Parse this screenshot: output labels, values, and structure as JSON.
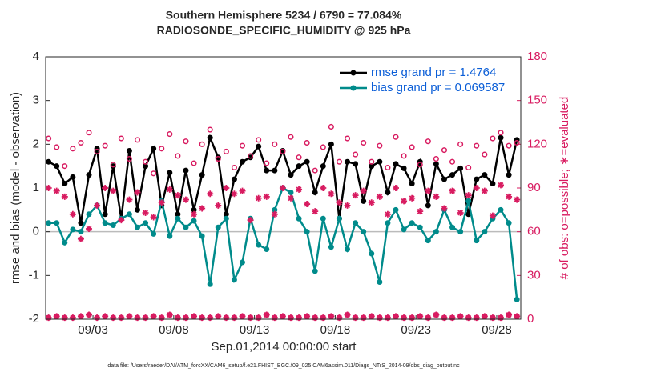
{
  "chart_data": {
    "type": "line",
    "title": "Southern Hemisphere 5234 / 6790 = 77.084%",
    "subtitle": "RADIOSONDE_SPECIFIC_HUMIDITY @ 925 hPa",
    "x_label": "Sep.01,2014 00:00:00 start",
    "y_label": "rmse and bias (model - observation)",
    "y2_label": "# of obs: o=possible; ∗=evaluated",
    "footnote": "data file: /Users/raeder/DAI/ATM_forcXX/CAM6_setup/f.e21.FHIST_BGC.f09_025.CAM6assim.011/Diags_NTrS_2014-09/obs_diag_output.nc",
    "xlim": [
      -0.93,
      28.49
    ],
    "xticks": [
      {
        "value": 2,
        "label": "09/03"
      },
      {
        "value": 7,
        "label": "09/08"
      },
      {
        "value": 12,
        "label": "09/13"
      },
      {
        "value": 17,
        "label": "09/18"
      },
      {
        "value": 22,
        "label": "09/23"
      },
      {
        "value": 27,
        "label": "09/28"
      }
    ],
    "ylim": [
      -2,
      4
    ],
    "yticks": [
      -2,
      -1,
      0,
      1,
      2,
      3,
      4
    ],
    "y2lim": [
      0,
      180
    ],
    "y2ticks": [
      0,
      30,
      60,
      90,
      120,
      150,
      180
    ],
    "legend": "upper right",
    "x": [
      -0.75,
      -0.25,
      0.25,
      0.75,
      1.25,
      1.75,
      2.25,
      2.75,
      3.25,
      3.75,
      4.25,
      4.75,
      5.25,
      5.75,
      6.25,
      6.75,
      7.25,
      7.75,
      8.25,
      8.75,
      9.25,
      9.75,
      10.25,
      10.75,
      11.25,
      11.75,
      12.25,
      12.75,
      13.25,
      13.75,
      14.25,
      14.75,
      15.25,
      15.75,
      16.25,
      16.75,
      17.25,
      17.75,
      18.25,
      18.75,
      19.25,
      19.75,
      20.25,
      20.75,
      21.25,
      21.75,
      22.25,
      22.75,
      23.25,
      23.75,
      24.25,
      24.75,
      25.25,
      25.75,
      26.25,
      26.75,
      27.25,
      27.75,
      28.25
    ],
    "series": [
      {
        "name": "rmse grand pr = 1.4764",
        "color": "#000000",
        "marker": "dot",
        "line": true,
        "values": [
          1.6,
          1.5,
          1.1,
          1.25,
          0.2,
          1.3,
          1.9,
          0.4,
          1.5,
          0.3,
          1.85,
          0.5,
          1.5,
          1.9,
          0.6,
          1.35,
          0.4,
          1.4,
          0.5,
          1.3,
          2.15,
          1.7,
          0.4,
          1.2,
          1.6,
          1.7,
          1.95,
          1.4,
          1.4,
          1.85,
          1.3,
          1.5,
          1.6,
          0.9,
          1.5,
          2.0,
          0.3,
          1.6,
          1.55,
          0.7,
          1.5,
          1.6,
          0.9,
          1.55,
          1.45,
          1.1,
          1.6,
          0.6,
          1.55,
          1.2,
          1.3,
          1.45,
          0.4,
          1.2,
          1.3,
          1.1,
          2.15,
          1.3,
          2.1
        ]
      },
      {
        "name": "bias grand pr = 0.069587",
        "color": "#008b8b",
        "marker": "dot",
        "line": true,
        "values": [
          0.2,
          0.2,
          -0.25,
          0.05,
          0.0,
          0.4,
          0.6,
          0.2,
          0.15,
          0.3,
          0.4,
          0.1,
          0.2,
          -0.05,
          0.7,
          -0.1,
          0.3,
          0.1,
          0.25,
          -0.1,
          -1.2,
          0.1,
          0.3,
          -1.1,
          -0.7,
          0.3,
          -0.3,
          -0.4,
          0.5,
          1.0,
          0.9,
          0.3,
          0.0,
          -0.9,
          0.3,
          -0.35,
          0.3,
          -0.4,
          0.2,
          0.0,
          -0.5,
          -1.15,
          0.2,
          0.5,
          0.05,
          0.2,
          0.1,
          -0.2,
          0.0,
          0.5,
          0.1,
          0.0,
          0.7,
          -0.2,
          0.0,
          0.3,
          0.5,
          0.2,
          -1.55
        ]
      },
      {
        "axis": "y2",
        "color": "#d81b60",
        "marker": "circle",
        "line": false,
        "values": [
          124,
          118,
          105,
          117,
          121,
          128,
          115,
          119,
          106,
          124,
          110,
          123,
          108,
          100,
          117,
          127,
          112,
          122,
          107,
          120,
          130,
          110,
          115,
          104,
          119,
          112,
          123,
          107,
          120,
          115,
          125,
          111,
          121,
          102,
          118,
          132,
          108,
          124,
          113,
          121,
          108,
          119,
          104,
          125,
          112,
          118,
          106,
          122,
          110,
          116,
          108,
          120,
          104,
          119,
          113,
          124,
          128,
          119,
          121
        ]
      },
      {
        "axis": "y2",
        "color": "#d81b60",
        "marker": "star",
        "line": false,
        "values": [
          90,
          88,
          84,
          72,
          55,
          62,
          78,
          90,
          88,
          68,
          82,
          87,
          73,
          70,
          80,
          89,
          85,
          82,
          72,
          76,
          86,
          78,
          90,
          86,
          88,
          68,
          83,
          84,
          72,
          90,
          83,
          89,
          79,
          74,
          90,
          86,
          80,
          78,
          85,
          88,
          80,
          84,
          72,
          90,
          81,
          83,
          74,
          88,
          84,
          76,
          88,
          73,
          85,
          90,
          88,
          71,
          92,
          84,
          82
        ]
      },
      {
        "axis": "y2",
        "color": "#d81b60",
        "marker": "circle",
        "line": false,
        "values": [
          1,
          2,
          1,
          1,
          2,
          3,
          1,
          2,
          1,
          1,
          2,
          1,
          1,
          2,
          1,
          3,
          1,
          1,
          2,
          1,
          1,
          2,
          1,
          1,
          2,
          1,
          1,
          3,
          1,
          2,
          1,
          1,
          2,
          1,
          1,
          2,
          1,
          3,
          1,
          1,
          2,
          1,
          1,
          2,
          1,
          1,
          2,
          1,
          3,
          1,
          1,
          2,
          1,
          1,
          2,
          1,
          1,
          3,
          2
        ]
      },
      {
        "axis": "y2",
        "color": "#d81b60",
        "marker": "star",
        "line": false,
        "values": [
          1,
          2,
          1,
          1,
          2,
          3,
          1,
          2,
          1,
          1,
          2,
          1,
          1,
          2,
          1,
          3,
          1,
          1,
          2,
          1,
          1,
          2,
          1,
          1,
          2,
          1,
          1,
          3,
          1,
          2,
          1,
          1,
          2,
          1,
          1,
          2,
          1,
          3,
          1,
          1,
          2,
          1,
          1,
          2,
          1,
          1,
          2,
          1,
          3,
          1,
          1,
          2,
          1,
          1,
          2,
          1,
          1,
          3,
          2
        ]
      }
    ]
  }
}
